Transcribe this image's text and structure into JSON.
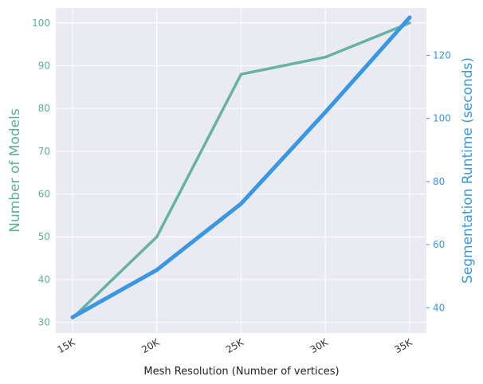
{
  "chart_data": {
    "type": "line",
    "xlabel": "Mesh Resolution (Number of vertices)",
    "categories": [
      "15K",
      "20K",
      "25K",
      "30K",
      "35K"
    ],
    "x": [
      15000,
      20000,
      25000,
      30000,
      35000
    ],
    "grid": true,
    "series": [
      {
        "name": "Number of Models",
        "axis": "left",
        "color": "#66b3a3",
        "values": [
          31,
          50,
          88,
          92,
          100
        ]
      },
      {
        "name": "Segmentation Runtime (seconds)",
        "axis": "right",
        "color": "#3a97e3",
        "values": [
          37,
          52,
          73,
          102,
          132
        ]
      }
    ],
    "ylabel_left": "Number of Models",
    "ylabel_right": "Segmentation Runtime (seconds)",
    "ylim_left": [
      27.5,
      103.5
    ],
    "yticks_left": [
      30,
      40,
      50,
      60,
      70,
      80,
      90,
      100
    ],
    "ylim_right": [
      32,
      135
    ],
    "yticks_right": [
      40,
      60,
      80,
      100,
      120
    ],
    "background_color": "#eaeaf2",
    "left_axis_color": "#5fae9a",
    "right_axis_color": "#3a97d9"
  }
}
